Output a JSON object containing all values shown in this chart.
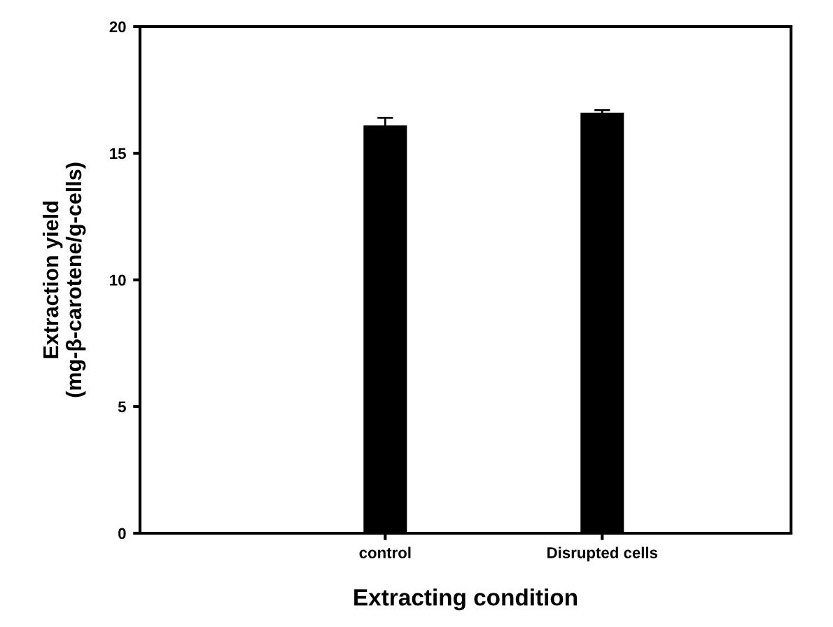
{
  "chart_data": {
    "type": "bar",
    "xlabel": "Extracting condition",
    "ylabel": "Extraction yield\n(mg-β-carotene/g-cells)",
    "categories": [
      "control",
      "Disrupted cells"
    ],
    "values": [
      16.1,
      16.6
    ],
    "errors": [
      0.3,
      0.1
    ],
    "color": "#000000",
    "ylim": [
      0,
      20
    ],
    "yticks": [
      0,
      5,
      10,
      15,
      20
    ],
    "grid": false,
    "legend": false
  }
}
